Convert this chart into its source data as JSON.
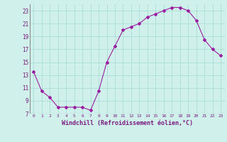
{
  "x": [
    0,
    1,
    2,
    3,
    4,
    5,
    6,
    7,
    8,
    9,
    10,
    11,
    12,
    13,
    14,
    15,
    16,
    17,
    18,
    19,
    20,
    21,
    22,
    23
  ],
  "y": [
    13.5,
    10.5,
    9.5,
    8.0,
    8.0,
    8.0,
    8.0,
    7.5,
    10.5,
    15.0,
    17.5,
    20.0,
    20.5,
    21.0,
    22.0,
    22.5,
    23.0,
    23.5,
    23.5,
    23.0,
    21.5,
    18.5,
    17.0,
    16.0
  ],
  "xlabel": "Windchill (Refroidissement éolien,°C)",
  "ylim": [
    7,
    24
  ],
  "yticks": [
    7,
    9,
    11,
    13,
    15,
    17,
    19,
    21,
    23
  ],
  "xticks": [
    0,
    1,
    2,
    3,
    4,
    5,
    6,
    7,
    8,
    9,
    10,
    11,
    12,
    13,
    14,
    15,
    16,
    17,
    18,
    19,
    20,
    21,
    22,
    23
  ],
  "line_color": "#9b1fa0",
  "marker": "D",
  "marker_size": 2.0,
  "bg_color": "#cff0eb",
  "grid_color": "#aaddd6",
  "title": ""
}
